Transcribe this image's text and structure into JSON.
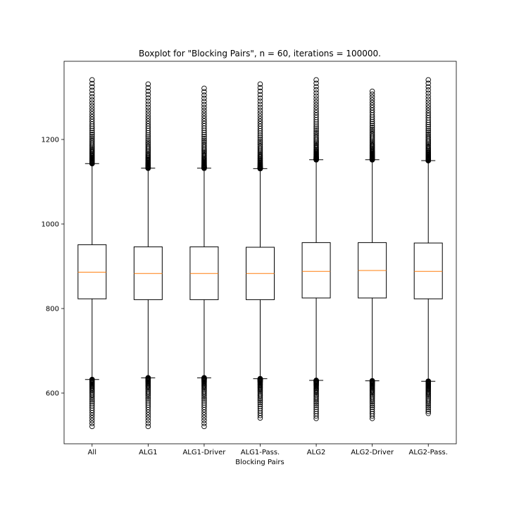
{
  "chart_data": {
    "type": "boxplot",
    "title": "Boxplot for \"Blocking Pairs\", n = 60, iterations = 100000.",
    "xlabel": "Blocking Pairs",
    "ylabel": "",
    "ylim": [
      480,
      1385
    ],
    "yticks": [
      600,
      800,
      1000,
      1200
    ],
    "grid": false,
    "colors": {
      "box": "#000000",
      "median": "#ff7f0e",
      "background": "#ffffff"
    },
    "categories": [
      "All",
      "ALG1",
      "ALG1-Driver",
      "ALG1-Pass.",
      "ALG2",
      "ALG2-Driver",
      "ALG2-Pass."
    ],
    "boxes": [
      {
        "label": "All",
        "whisker_low": 632,
        "q1": 823,
        "median": 886,
        "q3": 951,
        "whisker_high": 1143,
        "outlier_low_min": 521,
        "outlier_high_max": 1341
      },
      {
        "label": "ALG1",
        "whisker_low": 636,
        "q1": 821,
        "median": 883,
        "q3": 946,
        "whisker_high": 1132,
        "outlier_low_min": 521,
        "outlier_high_max": 1331
      },
      {
        "label": "ALG1-Driver",
        "whisker_low": 636,
        "q1": 821,
        "median": 883,
        "q3": 946,
        "whisker_high": 1132,
        "outlier_low_min": 521,
        "outlier_high_max": 1321
      },
      {
        "label": "ALG1-Pass.",
        "whisker_low": 634,
        "q1": 821,
        "median": 883,
        "q3": 945,
        "whisker_high": 1131,
        "outlier_low_min": 541,
        "outlier_high_max": 1331
      },
      {
        "label": "ALG2",
        "whisker_low": 630,
        "q1": 825,
        "median": 888,
        "q3": 956,
        "whisker_high": 1152,
        "outlier_low_min": 540,
        "outlier_high_max": 1341
      },
      {
        "label": "ALG2-Driver",
        "whisker_low": 629,
        "q1": 825,
        "median": 890,
        "q3": 956,
        "whisker_high": 1152,
        "outlier_low_min": 540,
        "outlier_high_max": 1314
      },
      {
        "label": "ALG2-Pass.",
        "whisker_low": 628,
        "q1": 823,
        "median": 888,
        "q3": 955,
        "whisker_high": 1150,
        "outlier_low_min": 552,
        "outlier_high_max": 1341
      }
    ]
  }
}
